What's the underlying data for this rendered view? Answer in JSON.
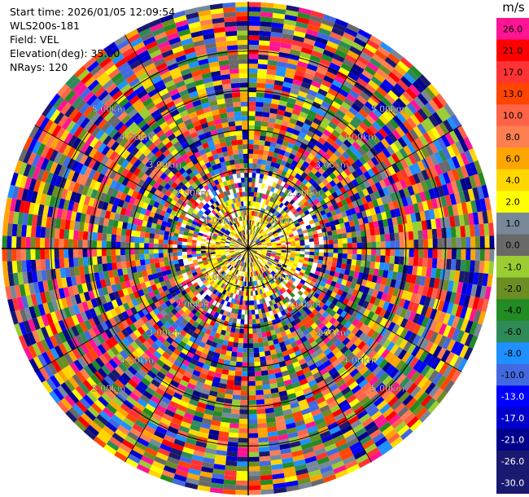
{
  "header": {
    "start_time": "Start time: 2026/01/05 12:09:54",
    "instrument": "WLS200s-181",
    "field": "Field: VEL",
    "elevation": "Elevation(deg): 35.00",
    "nrays": "NRays: 120"
  },
  "colorbar": {
    "units": "m/s",
    "bins": [
      {
        "label": "26.0",
        "color": "#ff1493"
      },
      {
        "label": "21.0",
        "color": "#ff0000"
      },
      {
        "label": "17.0",
        "color": "#ff3333"
      },
      {
        "label": "13.0",
        "color": "#ff4500"
      },
      {
        "label": "10.0",
        "color": "#ff6347"
      },
      {
        "label": "8.0",
        "color": "#ff7f50"
      },
      {
        "label": "6.0",
        "color": "#ffa500"
      },
      {
        "label": "4.0",
        "color": "#ffd700"
      },
      {
        "label": "2.0",
        "color": "#ffff00"
      },
      {
        "label": "1.0",
        "color": "#778899"
      },
      {
        "label": "0.0",
        "color": "#696969"
      },
      {
        "label": "-1.0",
        "color": "#9acd32"
      },
      {
        "label": "-2.0",
        "color": "#6b8e23"
      },
      {
        "label": "-4.0",
        "color": "#228b22"
      },
      {
        "label": "-6.0",
        "color": "#2e8b57"
      },
      {
        "label": "-8.0",
        "color": "#1e90ff"
      },
      {
        "label": "-10.0",
        "color": "#4169e1"
      },
      {
        "label": "-13.0",
        "color": "#0000ff"
      },
      {
        "label": "-17.0",
        "color": "#0000cd"
      },
      {
        "label": "-21.0",
        "color": "#00008b"
      },
      {
        "label": "-26.0",
        "color": "#191970"
      },
      {
        "label": "-30.0",
        "color": "#191970"
      }
    ]
  },
  "chart_data": {
    "type": "heatmap",
    "projection": "polar",
    "nrays": 120,
    "range_rings_km": [
      1.0,
      2.0,
      3.0,
      4.0,
      5.0
    ],
    "range_ring_labels": [
      "1.00km",
      "2.00km",
      "3.00km",
      "4.00km",
      "5.00km"
    ],
    "value_range": [
      -30.0,
      30.0
    ],
    "units": "m/s",
    "azimuth_lines": true
  }
}
